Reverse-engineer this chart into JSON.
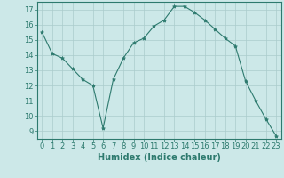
{
  "xlabel": "Humidex (Indice chaleur)",
  "x": [
    0,
    1,
    2,
    3,
    4,
    5,
    6,
    7,
    8,
    9,
    10,
    11,
    12,
    13,
    14,
    15,
    16,
    17,
    18,
    19,
    20,
    21,
    22,
    23
  ],
  "y": [
    15.5,
    14.1,
    13.8,
    13.1,
    12.4,
    12.0,
    9.2,
    12.4,
    13.8,
    14.8,
    15.1,
    15.9,
    16.3,
    17.2,
    17.2,
    16.8,
    16.3,
    15.7,
    15.1,
    14.6,
    12.3,
    11.0,
    9.8,
    8.7
  ],
  "line_color": "#2d7a6e",
  "marker": "*",
  "marker_size": 3,
  "bg_color": "#cce8e8",
  "grid_color": "#aacccc",
  "ylim_min": 8.5,
  "ylim_max": 17.5,
  "yticks": [
    9,
    10,
    11,
    12,
    13,
    14,
    15,
    16,
    17
  ],
  "xlim_min": -0.5,
  "xlim_max": 23.5,
  "xticks": [
    0,
    1,
    2,
    3,
    4,
    5,
    6,
    7,
    8,
    9,
    10,
    11,
    12,
    13,
    14,
    15,
    16,
    17,
    18,
    19,
    20,
    21,
    22,
    23
  ],
  "label_fontsize": 7,
  "tick_fontsize": 6,
  "spine_color": "#2d7a6e"
}
